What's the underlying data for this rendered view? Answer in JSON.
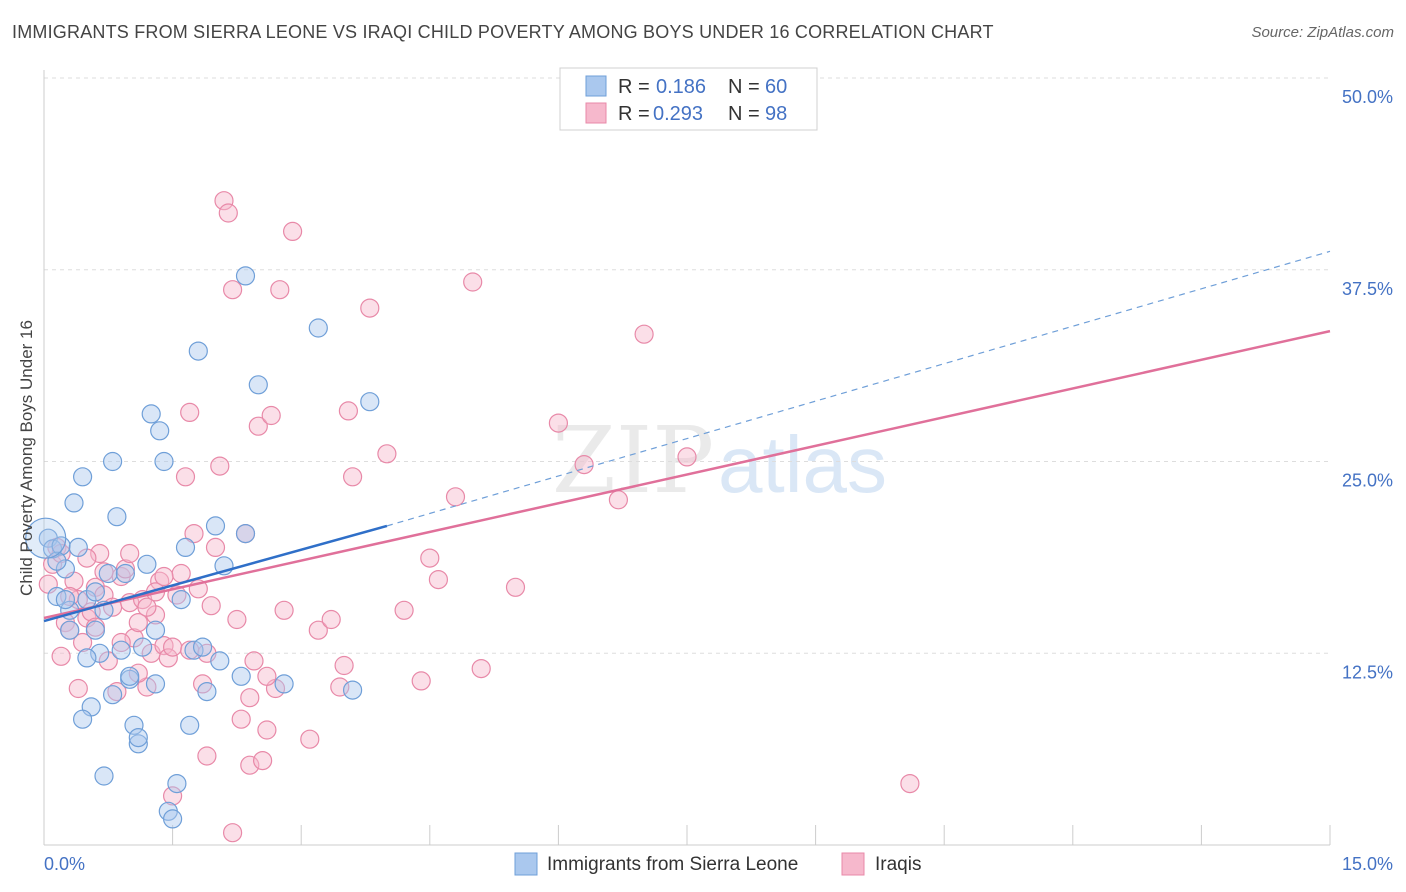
{
  "title": "IMMIGRANTS FROM SIERRA LEONE VS IRAQI CHILD POVERTY AMONG BOYS UNDER 16 CORRELATION CHART",
  "source": "Source: ZipAtlas.com",
  "watermark": {
    "zip": "ZIP",
    "atlas": "atlas"
  },
  "legend_top": [
    {
      "r_label": "R =",
      "r_value": "0.186",
      "n_label": "N =",
      "n_value": "60"
    },
    {
      "r_label": "R =",
      "r_value": "0.293",
      "n_label": "N =",
      "n_value": "98"
    }
  ],
  "legend_bottom": [
    {
      "name": "Immigrants from Sierra Leone"
    },
    {
      "name": "Iraqis"
    }
  ],
  "colors": {
    "blue_fill": "#aac8ee",
    "blue_stroke": "#6f9fd8",
    "blue_line": "#2f6fc8",
    "pink_fill": "#f6b8cc",
    "pink_stroke": "#e889a8",
    "pink_line": "#e0709a",
    "grid": "#dddddd",
    "tick_text": "#4472c4"
  },
  "chart_data": {
    "type": "scatter",
    "title": "IMMIGRANTS FROM SIERRA LEONE VS IRAQI CHILD POVERTY AMONG BOYS UNDER 16 CORRELATION CHART",
    "xlabel": "",
    "ylabel": "Child Poverty Among Boys Under 16",
    "xlim": [
      0,
      15
    ],
    "ylim": [
      0,
      50
    ],
    "x_tick_labels": [
      "0.0%",
      "15.0%"
    ],
    "y_ticks": [
      12.5,
      25.0,
      37.5,
      50.0
    ],
    "y_tick_labels": [
      "12.5%",
      "25.0%",
      "37.5%",
      "50.0%"
    ],
    "grid": true,
    "legend_placement": "top-center",
    "series": [
      {
        "name": "Immigrants from Sierra Leone",
        "r": 0.186,
        "n": 60,
        "trend": {
          "x0": 0,
          "y0": 14.6,
          "x1": 4.0,
          "y1": 20.8,
          "dashed_to_x": 15,
          "dashed_to_y": 38.7
        },
        "points": [
          [
            0.05,
            20.0
          ],
          [
            0.1,
            19.3
          ],
          [
            0.15,
            16.2
          ],
          [
            0.2,
            19.5
          ],
          [
            0.25,
            18.0
          ],
          [
            0.3,
            15.3
          ],
          [
            0.35,
            22.3
          ],
          [
            0.4,
            19.4
          ],
          [
            0.45,
            24.0
          ],
          [
            0.5,
            16.0
          ],
          [
            0.55,
            9.0
          ],
          [
            0.6,
            14.0
          ],
          [
            0.65,
            12.5
          ],
          [
            0.7,
            15.3
          ],
          [
            0.75,
            17.7
          ],
          [
            0.8,
            25.0
          ],
          [
            0.85,
            21.4
          ],
          [
            0.9,
            12.7
          ],
          [
            0.95,
            17.7
          ],
          [
            1.0,
            10.8
          ],
          [
            1.05,
            7.8
          ],
          [
            1.1,
            6.6
          ],
          [
            1.15,
            12.9
          ],
          [
            1.2,
            18.3
          ],
          [
            1.25,
            28.1
          ],
          [
            1.3,
            10.5
          ],
          [
            1.35,
            27.0
          ],
          [
            1.4,
            25.0
          ],
          [
            1.45,
            2.2
          ],
          [
            1.5,
            1.7
          ],
          [
            1.6,
            16.0
          ],
          [
            1.65,
            19.4
          ],
          [
            1.7,
            7.8
          ],
          [
            1.75,
            12.7
          ],
          [
            1.8,
            32.2
          ],
          [
            1.9,
            10.0
          ],
          [
            2.0,
            20.8
          ],
          [
            2.05,
            12.0
          ],
          [
            2.1,
            18.2
          ],
          [
            2.3,
            11.0
          ],
          [
            2.35,
            20.3
          ],
          [
            2.35,
            37.1
          ],
          [
            2.5,
            30.0
          ],
          [
            2.8,
            10.5
          ],
          [
            3.2,
            33.7
          ],
          [
            3.6,
            10.1
          ],
          [
            3.8,
            28.9
          ],
          [
            0.7,
            4.5
          ],
          [
            0.8,
            9.8
          ],
          [
            1.1,
            7.0
          ],
          [
            0.45,
            8.2
          ],
          [
            1.55,
            4.0
          ],
          [
            0.3,
            14.0
          ],
          [
            0.25,
            16.0
          ],
          [
            0.5,
            12.2
          ],
          [
            1.0,
            11.0
          ],
          [
            1.85,
            12.9
          ],
          [
            0.15,
            18.5
          ],
          [
            0.6,
            16.5
          ],
          [
            1.3,
            14.0
          ]
        ]
      },
      {
        "name": "Iraqis",
        "r": 0.293,
        "n": 98,
        "trend": {
          "x0": 0,
          "y0": 14.8,
          "x1": 15,
          "y1": 33.5
        },
        "points": [
          [
            0.05,
            17.0
          ],
          [
            0.1,
            18.3
          ],
          [
            0.15,
            19.4
          ],
          [
            0.2,
            19.0
          ],
          [
            0.25,
            14.5
          ],
          [
            0.3,
            14.0
          ],
          [
            0.35,
            17.2
          ],
          [
            0.4,
            16.0
          ],
          [
            0.45,
            13.2
          ],
          [
            0.5,
            14.8
          ],
          [
            0.55,
            15.2
          ],
          [
            0.6,
            16.8
          ],
          [
            0.65,
            19.0
          ],
          [
            0.7,
            16.3
          ],
          [
            0.75,
            12.0
          ],
          [
            0.8,
            15.5
          ],
          [
            0.85,
            10.0
          ],
          [
            0.9,
            17.5
          ],
          [
            0.95,
            18.0
          ],
          [
            1.0,
            15.8
          ],
          [
            1.05,
            13.5
          ],
          [
            1.1,
            14.5
          ],
          [
            1.15,
            16.0
          ],
          [
            1.2,
            10.3
          ],
          [
            1.25,
            12.5
          ],
          [
            1.3,
            15.0
          ],
          [
            1.35,
            17.2
          ],
          [
            1.4,
            13.0
          ],
          [
            1.45,
            12.2
          ],
          [
            1.5,
            3.2
          ],
          [
            1.55,
            16.3
          ],
          [
            1.6,
            17.7
          ],
          [
            1.65,
            24.0
          ],
          [
            1.7,
            28.2
          ],
          [
            1.75,
            20.3
          ],
          [
            1.8,
            16.7
          ],
          [
            1.85,
            10.5
          ],
          [
            1.9,
            5.8
          ],
          [
            1.95,
            15.6
          ],
          [
            2.0,
            19.4
          ],
          [
            2.05,
            24.7
          ],
          [
            2.1,
            42.0
          ],
          [
            2.15,
            41.2
          ],
          [
            2.2,
            36.2
          ],
          [
            2.25,
            14.7
          ],
          [
            2.3,
            8.2
          ],
          [
            2.35,
            20.3
          ],
          [
            2.4,
            5.2
          ],
          [
            2.45,
            12.0
          ],
          [
            2.5,
            27.3
          ],
          [
            2.55,
            5.5
          ],
          [
            2.6,
            7.5
          ],
          [
            2.65,
            28.0
          ],
          [
            2.7,
            10.2
          ],
          [
            2.75,
            36.2
          ],
          [
            2.8,
            15.3
          ],
          [
            2.9,
            40.0
          ],
          [
            3.1,
            6.9
          ],
          [
            3.2,
            14.0
          ],
          [
            3.35,
            14.7
          ],
          [
            3.45,
            10.3
          ],
          [
            3.5,
            11.7
          ],
          [
            3.55,
            28.3
          ],
          [
            3.6,
            24.0
          ],
          [
            3.8,
            35.0
          ],
          [
            4.0,
            25.5
          ],
          [
            4.2,
            15.3
          ],
          [
            4.4,
            10.7
          ],
          [
            4.5,
            18.7
          ],
          [
            4.6,
            17.3
          ],
          [
            4.8,
            22.7
          ],
          [
            5.0,
            36.7
          ],
          [
            5.1,
            11.5
          ],
          [
            5.5,
            16.8
          ],
          [
            6.0,
            27.5
          ],
          [
            6.3,
            24.8
          ],
          [
            6.7,
            22.5
          ],
          [
            7.0,
            33.3
          ],
          [
            7.5,
            25.3
          ],
          [
            10.1,
            4.0
          ],
          [
            0.2,
            12.3
          ],
          [
            0.4,
            10.2
          ],
          [
            0.6,
            14.2
          ],
          [
            0.9,
            13.2
          ],
          [
            1.1,
            11.2
          ],
          [
            1.3,
            16.5
          ],
          [
            1.5,
            12.9
          ],
          [
            1.7,
            12.7
          ],
          [
            1.9,
            12.5
          ],
          [
            2.2,
            0.8
          ],
          [
            2.4,
            9.6
          ],
          [
            2.6,
            11.0
          ],
          [
            0.3,
            16.2
          ],
          [
            0.5,
            18.7
          ],
          [
            0.7,
            17.8
          ],
          [
            1.0,
            19.0
          ],
          [
            1.2,
            15.5
          ],
          [
            1.4,
            17.5
          ]
        ]
      }
    ]
  }
}
